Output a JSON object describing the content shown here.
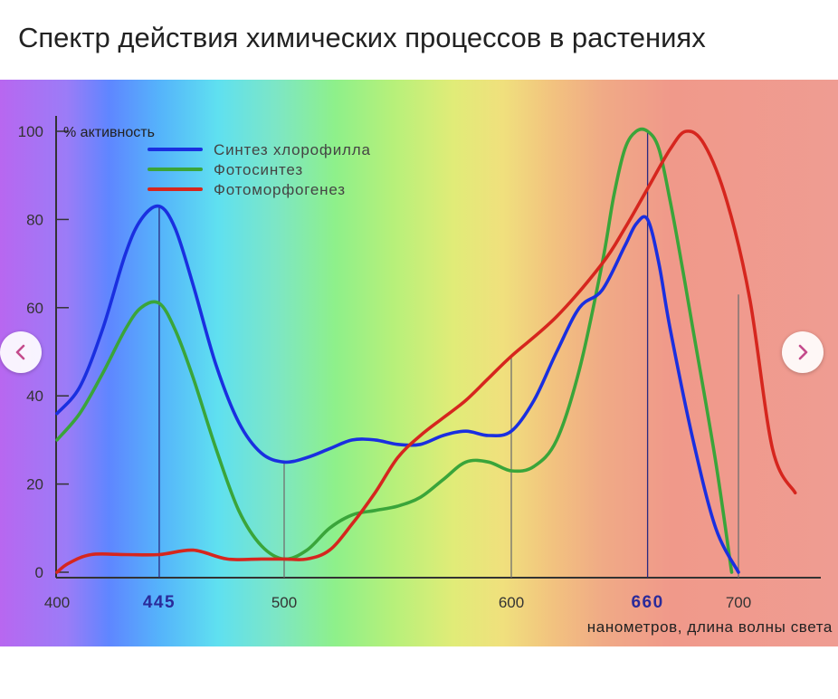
{
  "title": "Спектр действия химических процессов в растениях",
  "icons": {
    "prev": "chevron-left-icon",
    "next": "chevron-right-icon"
  },
  "chart_data": {
    "type": "line",
    "ylabel": "% активность",
    "xlabel": "нанометров, длина волны света",
    "xlim": [
      400,
      730
    ],
    "ylim": [
      0,
      104
    ],
    "x_ticks": [
      {
        "value": 400,
        "label": "400",
        "highlight": false
      },
      {
        "value": 445,
        "label": "445",
        "highlight": true
      },
      {
        "value": 500,
        "label": "500",
        "highlight": false
      },
      {
        "value": 600,
        "label": "600",
        "highlight": false
      },
      {
        "value": 660,
        "label": "660",
        "highlight": true
      },
      {
        "value": 700,
        "label": "700",
        "highlight": false
      }
    ],
    "y_ticks": [
      {
        "value": 0,
        "label": "0"
      },
      {
        "value": 20,
        "label": "20"
      },
      {
        "value": 40,
        "label": "40"
      },
      {
        "value": 60,
        "label": "60"
      },
      {
        "value": 80,
        "label": "80"
      },
      {
        "value": 100,
        "label": "100"
      }
    ],
    "guide_lines": [
      {
        "x": 445,
        "y_top": 83,
        "color": "#2a2a80"
      },
      {
        "x": 500,
        "y_top": 25,
        "color": "#707070"
      },
      {
        "x": 600,
        "y_top": 49,
        "color": "#707070"
      },
      {
        "x": 660,
        "y_top": 100,
        "color": "#2a2a80"
      },
      {
        "x": 700,
        "y_top": 63,
        "color": "#707070"
      }
    ],
    "legend_position": "top-left",
    "series": [
      {
        "name": "Синтез хлорофилла",
        "color": "#1a2fe0",
        "x": [
          400,
          410,
          420,
          430,
          437,
          445,
          452,
          460,
          470,
          480,
          490,
          500,
          510,
          520,
          530,
          540,
          550,
          560,
          570,
          580,
          590,
          600,
          610,
          620,
          630,
          640,
          650,
          655,
          660,
          665,
          670,
          680,
          690,
          700
        ],
        "y": [
          36,
          42,
          55,
          72,
          80,
          83,
          78,
          65,
          47,
          34,
          27,
          25,
          26,
          28,
          30,
          30,
          29,
          29,
          31,
          32,
          31,
          32,
          39,
          50,
          60,
          64,
          74,
          79,
          80,
          70,
          55,
          30,
          10,
          0
        ]
      },
      {
        "name": "Фотосинтез",
        "color": "#3aa53a",
        "x": [
          400,
          410,
          420,
          430,
          437,
          445,
          452,
          460,
          470,
          480,
          490,
          500,
          510,
          520,
          530,
          540,
          550,
          560,
          570,
          580,
          590,
          600,
          610,
          620,
          630,
          640,
          645,
          650,
          655,
          660,
          665,
          670,
          675,
          680,
          690,
          697
        ],
        "y": [
          30,
          36,
          45,
          55,
          60,
          61,
          55,
          44,
          28,
          14,
          6,
          3,
          5,
          10,
          13,
          14,
          15,
          17,
          21,
          25,
          25,
          23,
          24,
          30,
          46,
          70,
          85,
          96,
          100,
          100,
          96,
          84,
          70,
          55,
          25,
          0
        ]
      },
      {
        "name": "Фотоморфогенез",
        "color": "#d6261e",
        "x": [
          400,
          405,
          415,
          430,
          445,
          460,
          475,
          490,
          500,
          510,
          520,
          530,
          540,
          550,
          560,
          570,
          580,
          590,
          600,
          620,
          640,
          650,
          660,
          670,
          677,
          685,
          695,
          705,
          715,
          725
        ],
        "y": [
          0,
          2,
          4,
          4,
          4,
          5,
          3,
          3,
          3,
          3,
          5,
          11,
          18,
          26,
          31,
          35,
          39,
          44,
          49,
          58,
          70,
          78,
          87,
          96,
          100,
          97,
          84,
          62,
          28,
          18
        ]
      }
    ]
  }
}
